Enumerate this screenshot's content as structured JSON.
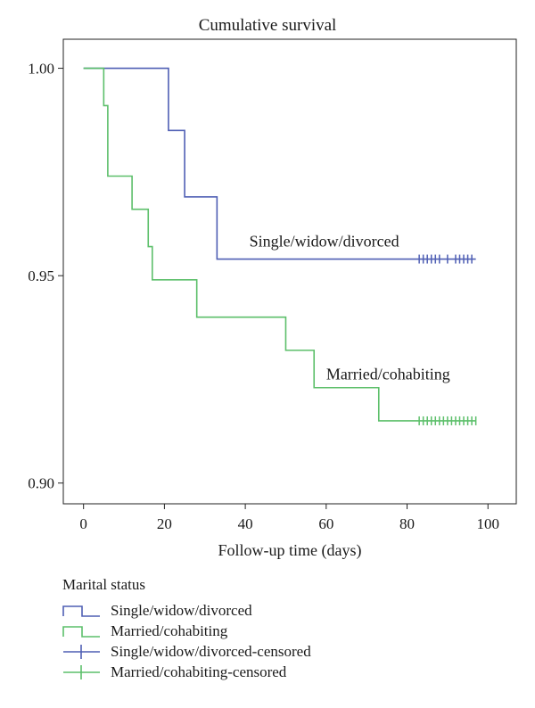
{
  "chart_data": {
    "type": "line",
    "title": "Cumulative survival",
    "xlabel": "Follow-up time (days)",
    "ylabel": "",
    "xlim": [
      -5,
      107
    ],
    "ylim": [
      0.895,
      1.007
    ],
    "x_ticks": [
      0,
      20,
      40,
      60,
      80,
      100
    ],
    "x_tick_labels": [
      "0",
      "20",
      "40",
      "60",
      "80",
      "100"
    ],
    "y_ticks": [
      0.9,
      0.95,
      1.0
    ],
    "y_tick_labels": [
      "0.90",
      "0.95",
      "1.00"
    ],
    "grid": false,
    "legend_position": "bottom",
    "series": [
      {
        "name": "Single/widow/divorced",
        "color": "#4f5fb4",
        "step": [
          [
            0,
            1.0
          ],
          [
            21,
            0.985
          ],
          [
            25,
            0.969
          ],
          [
            33,
            0.954
          ],
          [
            97,
            0.954
          ]
        ],
        "censored_x": [
          83,
          84,
          85,
          86,
          87,
          88,
          90,
          92,
          93,
          94,
          95,
          96
        ]
      },
      {
        "name": "Married/cohabiting",
        "color": "#5cbf6a",
        "step": [
          [
            0,
            1.0
          ],
          [
            5,
            0.991
          ],
          [
            6,
            0.974
          ],
          [
            12,
            0.966
          ],
          [
            16,
            0.957
          ],
          [
            17,
            0.949
          ],
          [
            28,
            0.94
          ],
          [
            50,
            0.932
          ],
          [
            57,
            0.923
          ],
          [
            73,
            0.915
          ],
          [
            97,
            0.915
          ]
        ],
        "censored_x": [
          83,
          84,
          85,
          86,
          87,
          88,
          89,
          90,
          91,
          92,
          93,
          94,
          95,
          96,
          97
        ]
      }
    ],
    "annotations": [
      {
        "text": "Single/widow/divorced",
        "x": 41,
        "y": 0.957
      },
      {
        "text": "Married/cohabiting",
        "x": 60,
        "y": 0.925
      }
    ]
  },
  "legend": {
    "title": "Marital status",
    "items": [
      {
        "label": "Single/widow/divorced",
        "symbol": "step",
        "color": "#4f5fb4"
      },
      {
        "label": "Married/cohabiting",
        "symbol": "step",
        "color": "#5cbf6a"
      },
      {
        "label": "Single/widow/divorced-censored",
        "symbol": "cross",
        "color": "#4f5fb4"
      },
      {
        "label": "Married/cohabiting-censored",
        "symbol": "cross",
        "color": "#5cbf6a"
      }
    ]
  }
}
